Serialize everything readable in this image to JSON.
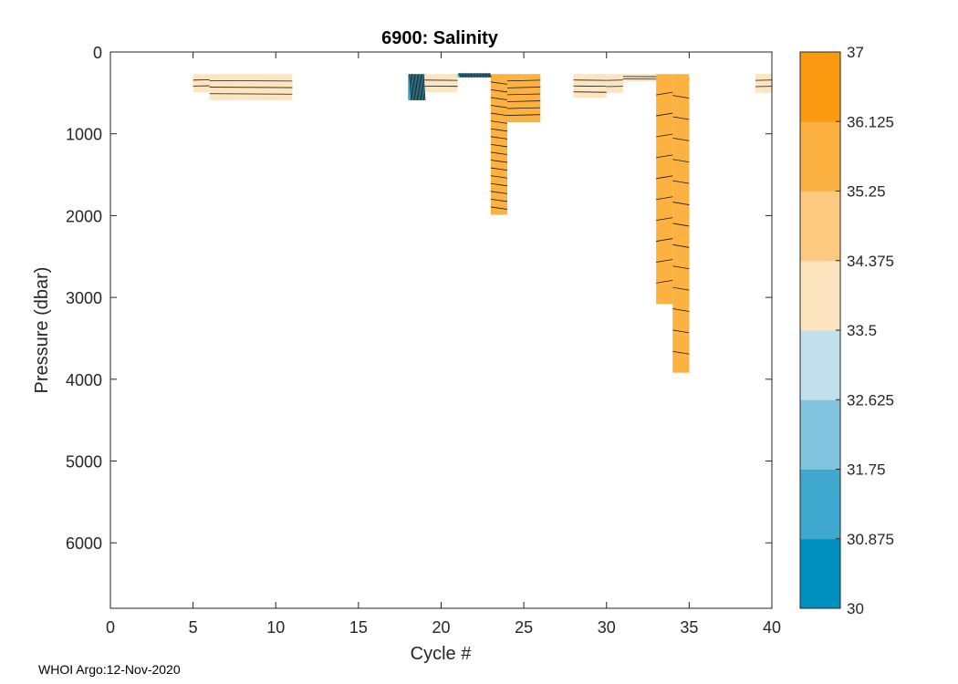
{
  "chart_data": {
    "type": "heatmap",
    "title": "6900:  Salinity",
    "xlabel": "Cycle #",
    "ylabel": "Pressure (dbar)",
    "xlim": [
      0,
      40
    ],
    "ylim": [
      0,
      6800
    ],
    "y_reversed": true,
    "xticks": [
      0,
      5,
      10,
      15,
      20,
      25,
      30,
      35,
      40
    ],
    "xtick_labels": [
      "0",
      "5",
      "10",
      "15",
      "20",
      "25",
      "30",
      "35",
      "40"
    ],
    "yticks": [
      0,
      1000,
      2000,
      3000,
      4000,
      5000,
      6000
    ],
    "ytick_labels": [
      "0",
      "1000",
      "2000",
      "3000",
      "4000",
      "5000",
      "6000"
    ],
    "colorbar": {
      "levels": [
        30,
        30.875,
        31.75,
        32.625,
        33.5,
        34.375,
        35.25,
        36.125,
        37
      ],
      "labels": [
        "30",
        "30.875",
        "31.75",
        "32.625",
        "33.5",
        "34.375",
        "35.25",
        "36.125",
        "37"
      ],
      "colors": [
        "#0090bf",
        "#3ea8cf",
        "#80c4df",
        "#bfe0ec",
        "#fce5bf",
        "#fccb7f",
        "#fcb240",
        "#fc9b12"
      ]
    },
    "regions": [
      {
        "x0": 5,
        "x1": 6,
        "y0": 270,
        "y1": 490,
        "salinity": 34.0
      },
      {
        "x0": 6,
        "x1": 11,
        "y0": 270,
        "y1": 590,
        "salinity": 34.0
      },
      {
        "x0": 18,
        "x1": 19,
        "y0": 270,
        "y1": 590,
        "salinity": 31.5
      },
      {
        "x0": 19,
        "x1": 21,
        "y0": 270,
        "y1": 490,
        "salinity": 34.0
      },
      {
        "x0": 21,
        "x1": 23,
        "y0": 260,
        "y1": 310,
        "salinity": 31.0
      },
      {
        "x0": 23,
        "x1": 24,
        "y0": 270,
        "y1": 1990,
        "salinity": 35.5
      },
      {
        "x0": 24,
        "x1": 26,
        "y0": 270,
        "y1": 860,
        "salinity": 35.5
      },
      {
        "x0": 28,
        "x1": 30,
        "y0": 270,
        "y1": 560,
        "salinity": 34.0
      },
      {
        "x0": 30,
        "x1": 31,
        "y0": 270,
        "y1": 500,
        "salinity": 34.0
      },
      {
        "x0": 31,
        "x1": 33,
        "y0": 270,
        "y1": 360,
        "salinity": 34.0
      },
      {
        "x0": 33,
        "x1": 34,
        "y0": 270,
        "y1": 3080,
        "salinity": 35.7
      },
      {
        "x0": 34,
        "x1": 35,
        "y0": 270,
        "y1": 3920,
        "salinity": 35.7
      },
      {
        "x0": 39,
        "x1": 40,
        "y0": 270,
        "y1": 500,
        "salinity": 34.0
      }
    ]
  },
  "footer": "WHOI Argo:12-Nov-2020"
}
